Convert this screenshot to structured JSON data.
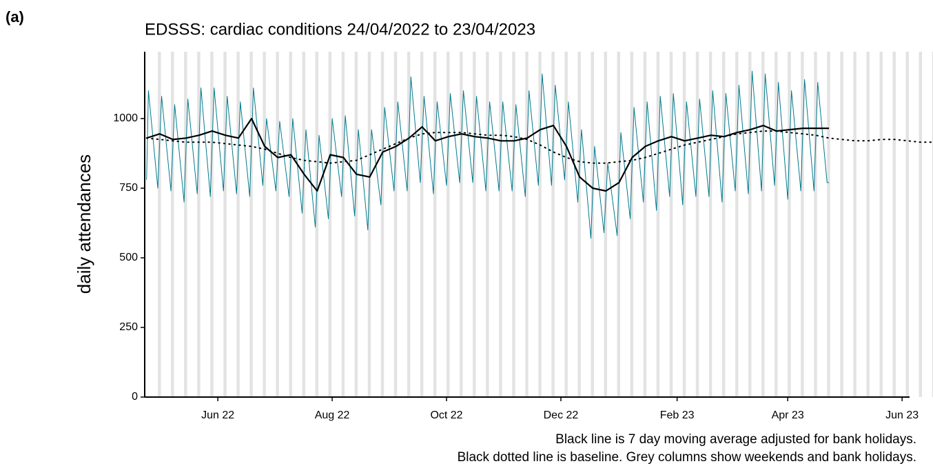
{
  "chart_data": {
    "type": "line",
    "panel_label": "(a)",
    "title": "EDSSS: cardiac conditions 24/04/2022 to 23/04/2023",
    "y_label": "daily attendances",
    "annotations": [
      "Black line is 7 day moving average adjusted for bank holidays.",
      "Black dotted line is baseline. Grey columns show weekends and bank holidays."
    ],
    "xlim": [
      "2022-04-23",
      "2023-06-05"
    ],
    "xticks": [
      {
        "value": "2022-06-01",
        "label": "Jun 22"
      },
      {
        "value": "2022-08-01",
        "label": "Aug 22"
      },
      {
        "value": "2022-10-01",
        "label": "Oct 22"
      },
      {
        "value": "2022-12-01",
        "label": "Dec 22"
      },
      {
        "value": "2023-02-01",
        "label": "Feb 23"
      },
      {
        "value": "2023-04-01",
        "label": "Apr 23"
      },
      {
        "value": "2023-06-01",
        "label": "Jun 23"
      }
    ],
    "ylim": [
      0,
      1240
    ],
    "yticks": [
      0,
      250,
      500,
      750,
      1000
    ],
    "weekend_color": "#e3e3e3",
    "series": [
      {
        "color": "#00798c",
        "line_style": "solid",
        "width": 1,
        "x": [
          "2022-04-24",
          "2022-04-25",
          "2022-04-30",
          "2022-05-02",
          "2022-05-07",
          "2022-05-09",
          "2022-05-14",
          "2022-05-16",
          "2022-05-21",
          "2022-05-23",
          "2022-05-28",
          "2022-05-30",
          "2022-06-04",
          "2022-06-06",
          "2022-06-11",
          "2022-06-13",
          "2022-06-18",
          "2022-06-20",
          "2022-06-25",
          "2022-06-27",
          "2022-07-02",
          "2022-07-04",
          "2022-07-09",
          "2022-07-11",
          "2022-07-16",
          "2022-07-18",
          "2022-07-23",
          "2022-07-25",
          "2022-07-30",
          "2022-08-01",
          "2022-08-06",
          "2022-08-08",
          "2022-08-13",
          "2022-08-15",
          "2022-08-20",
          "2022-08-22",
          "2022-08-27",
          "2022-08-29",
          "2022-09-03",
          "2022-09-05",
          "2022-09-10",
          "2022-09-12",
          "2022-09-17",
          "2022-09-19",
          "2022-09-24",
          "2022-09-26",
          "2022-10-01",
          "2022-10-03",
          "2022-10-08",
          "2022-10-10",
          "2022-10-15",
          "2022-10-17",
          "2022-10-22",
          "2022-10-24",
          "2022-10-29",
          "2022-10-31",
          "2022-11-05",
          "2022-11-07",
          "2022-11-12",
          "2022-11-14",
          "2022-11-19",
          "2022-11-21",
          "2022-11-26",
          "2022-11-28",
          "2022-12-03",
          "2022-12-05",
          "2022-12-10",
          "2022-12-12",
          "2022-12-17",
          "2022-12-19",
          "2022-12-24",
          "2022-12-26",
          "2022-12-31",
          "2023-01-02",
          "2023-01-07",
          "2023-01-09",
          "2023-01-14",
          "2023-01-16",
          "2023-01-21",
          "2023-01-23",
          "2023-01-28",
          "2023-01-30",
          "2023-02-04",
          "2023-02-06",
          "2023-02-11",
          "2023-02-13",
          "2023-02-18",
          "2023-02-20",
          "2023-02-25",
          "2023-02-27",
          "2023-03-04",
          "2023-03-06",
          "2023-03-11",
          "2023-03-13",
          "2023-03-18",
          "2023-03-20",
          "2023-03-25",
          "2023-03-27",
          "2023-04-01",
          "2023-04-03",
          "2023-04-08",
          "2023-04-10",
          "2023-04-15",
          "2023-04-17",
          "2023-04-22",
          "2023-04-23"
        ],
        "values": [
          780,
          1100,
          750,
          1080,
          740,
          1050,
          700,
          1070,
          730,
          1110,
          720,
          1110,
          740,
          1080,
          730,
          1060,
          720,
          1110,
          760,
          1000,
          740,
          990,
          720,
          1000,
          660,
          960,
          610,
          940,
          640,
          1000,
          720,
          1010,
          650,
          960,
          600,
          960,
          690,
          1040,
          740,
          1060,
          740,
          1150,
          770,
          1080,
          730,
          1060,
          760,
          1090,
          770,
          1100,
          770,
          1080,
          740,
          1060,
          740,
          1060,
          740,
          1050,
          720,
          1100,
          760,
          1160,
          760,
          1120,
          780,
          1060,
          700,
          960,
          570,
          900,
          590,
          840,
          580,
          950,
          640,
          1040,
          700,
          1060,
          670,
          1080,
          720,
          1090,
          690,
          1060,
          720,
          1070,
          720,
          1100,
          700,
          1090,
          740,
          1120,
          730,
          1170,
          740,
          1160,
          760,
          1130,
          710,
          1100,
          740,
          1140,
          740,
          1130,
          770,
          770
        ]
      },
      {
        "color": "#000000",
        "line_style": "solid",
        "width": 2.2,
        "x": [
          "2022-04-24",
          "2022-05-01",
          "2022-05-08",
          "2022-05-15",
          "2022-05-22",
          "2022-05-29",
          "2022-06-05",
          "2022-06-12",
          "2022-06-19",
          "2022-06-26",
          "2022-07-03",
          "2022-07-10",
          "2022-07-17",
          "2022-07-24",
          "2022-07-31",
          "2022-08-07",
          "2022-08-14",
          "2022-08-21",
          "2022-08-28",
          "2022-09-04",
          "2022-09-11",
          "2022-09-18",
          "2022-09-25",
          "2022-10-02",
          "2022-10-09",
          "2022-10-16",
          "2022-10-23",
          "2022-10-30",
          "2022-11-06",
          "2022-11-13",
          "2022-11-20",
          "2022-11-27",
          "2022-12-04",
          "2022-12-11",
          "2022-12-18",
          "2022-12-25",
          "2023-01-01",
          "2023-01-08",
          "2023-01-15",
          "2023-01-22",
          "2023-01-29",
          "2023-02-05",
          "2023-02-12",
          "2023-02-19",
          "2023-02-26",
          "2023-03-05",
          "2023-03-12",
          "2023-03-19",
          "2023-03-26",
          "2023-04-02",
          "2023-04-09",
          "2023-04-16",
          "2023-04-23"
        ],
        "values": [
          930,
          945,
          925,
          930,
          940,
          955,
          940,
          930,
          1000,
          900,
          860,
          870,
          800,
          740,
          870,
          860,
          800,
          790,
          880,
          900,
          930,
          970,
          920,
          935,
          945,
          935,
          930,
          920,
          920,
          930,
          960,
          975,
          900,
          790,
          750,
          740,
          770,
          860,
          900,
          920,
          935,
          920,
          930,
          940,
          935,
          950,
          960,
          975,
          955,
          960,
          965,
          965,
          965
        ]
      },
      {
        "color": "#000000",
        "line_style": "dotted",
        "width": 2,
        "x": [
          "2022-04-24",
          "2022-05-01",
          "2022-05-08",
          "2022-05-15",
          "2022-05-22",
          "2022-05-29",
          "2022-06-05",
          "2022-06-12",
          "2022-06-19",
          "2022-06-26",
          "2022-07-03",
          "2022-07-10",
          "2022-07-17",
          "2022-07-24",
          "2022-07-31",
          "2022-08-07",
          "2022-08-14",
          "2022-08-21",
          "2022-08-28",
          "2022-09-04",
          "2022-09-11",
          "2022-09-18",
          "2022-09-25",
          "2022-10-02",
          "2022-10-09",
          "2022-10-16",
          "2022-10-23",
          "2022-10-30",
          "2022-11-06",
          "2022-11-13",
          "2022-11-20",
          "2022-11-27",
          "2022-12-04",
          "2022-12-11",
          "2022-12-18",
          "2022-12-25",
          "2023-01-01",
          "2023-01-08",
          "2023-01-15",
          "2023-01-22",
          "2023-01-29",
          "2023-02-05",
          "2023-02-12",
          "2023-02-19",
          "2023-02-26",
          "2023-03-05",
          "2023-03-12",
          "2023-03-19",
          "2023-03-26",
          "2023-04-02",
          "2023-04-09",
          "2023-04-16",
          "2023-04-23",
          "2023-04-30",
          "2023-05-07",
          "2023-05-14",
          "2023-05-21",
          "2023-05-28",
          "2023-06-04",
          "2023-06-11",
          "2023-06-18"
        ],
        "values": [
          930,
          925,
          920,
          915,
          915,
          915,
          910,
          905,
          900,
          890,
          875,
          860,
          850,
          845,
          840,
          845,
          850,
          870,
          890,
          910,
          930,
          945,
          950,
          950,
          950,
          945,
          940,
          940,
          935,
          925,
          905,
          880,
          860,
          845,
          840,
          840,
          845,
          850,
          860,
          875,
          890,
          905,
          915,
          925,
          935,
          945,
          950,
          955,
          955,
          950,
          945,
          940,
          930,
          925,
          920,
          920,
          925,
          925,
          920,
          915,
          915
        ]
      }
    ]
  }
}
